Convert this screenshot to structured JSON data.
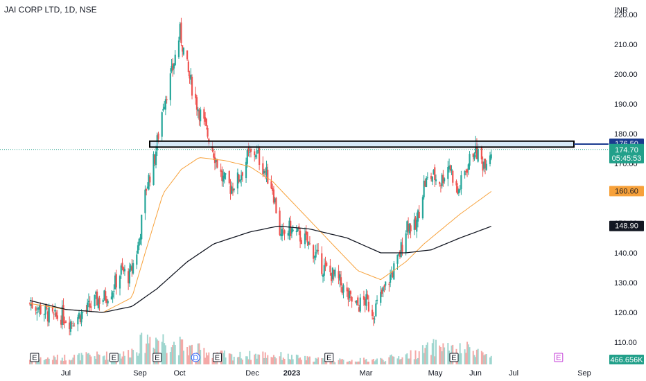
{
  "chart_data": {
    "type": "candlestick",
    "title": "JAI CORP LTD, 1D, NSE",
    "currency": "INR",
    "ylim": [
      105,
      222
    ],
    "y_ticks": [
      110,
      120,
      130,
      140,
      150,
      160,
      170,
      180,
      190,
      200,
      210,
      220
    ],
    "y_tick_labels": [
      "110.00",
      "120.00",
      "130.00",
      "140.00",
      "150.00",
      "160.00",
      "170.00",
      "180.00",
      "190.00",
      "200.00",
      "210.00",
      "220.00"
    ],
    "x_labels": [
      "Jul",
      "Sep",
      "Oct",
      "Dec",
      "2023",
      "Mar",
      "May",
      "Jun",
      "Jul",
      "Sep"
    ],
    "grid": false,
    "price_tags": {
      "resistance": "176.50",
      "last_price": "174.70",
      "countdown": "05:45:53",
      "ma_fast": "160.60",
      "ma_slow": "148.90",
      "volume": "466.656K"
    },
    "resistance_zone": [
      175.5,
      177.5
    ],
    "last_price_value": 174.7,
    "series": [
      {
        "kind": "close_path",
        "points": [
          [
            "2022-06-01",
            123
          ],
          [
            "2022-06-07",
            122
          ],
          [
            "2022-06-14",
            120
          ],
          [
            "2022-06-21",
            118
          ],
          [
            "2022-06-28",
            119
          ],
          [
            "2022-07-05",
            117
          ],
          [
            "2022-07-12",
            119
          ],
          [
            "2022-07-19",
            121
          ],
          [
            "2022-07-26",
            124
          ],
          [
            "2022-08-02",
            125
          ],
          [
            "2022-08-09",
            128
          ],
          [
            "2022-08-16",
            134
          ],
          [
            "2022-08-23",
            132
          ],
          [
            "2022-08-30",
            142
          ],
          [
            "2022-09-06",
            162
          ],
          [
            "2022-09-13",
            172
          ],
          [
            "2022-09-20",
            190
          ],
          [
            "2022-09-27",
            200
          ],
          [
            "2022-10-04",
            214
          ],
          [
            "2022-10-11",
            200
          ],
          [
            "2022-10-18",
            190
          ],
          [
            "2022-10-25",
            182
          ],
          [
            "2022-11-01",
            174
          ],
          [
            "2022-11-08",
            165
          ],
          [
            "2022-11-15",
            162
          ],
          [
            "2022-11-22",
            165
          ],
          [
            "2022-11-29",
            172
          ],
          [
            "2022-12-06",
            174
          ],
          [
            "2022-12-13",
            168
          ],
          [
            "2022-12-20",
            162
          ],
          [
            "2022-12-27",
            145
          ],
          [
            "2023-01-03",
            148
          ],
          [
            "2023-01-10",
            146
          ],
          [
            "2023-01-17",
            144
          ],
          [
            "2023-01-24",
            140
          ],
          [
            "2023-01-31",
            135
          ],
          [
            "2023-02-07",
            133
          ],
          [
            "2023-02-14",
            130
          ],
          [
            "2023-02-21",
            125
          ],
          [
            "2023-02-28",
            122
          ],
          [
            "2023-03-07",
            124
          ],
          [
            "2023-03-14",
            120
          ],
          [
            "2023-03-21",
            126
          ],
          [
            "2023-03-28",
            132
          ],
          [
            "2023-04-04",
            138
          ],
          [
            "2023-04-11",
            150
          ],
          [
            "2023-04-18",
            148
          ],
          [
            "2023-04-25",
            163
          ],
          [
            "2023-05-02",
            166
          ],
          [
            "2023-05-09",
            164
          ],
          [
            "2023-05-16",
            170
          ],
          [
            "2023-05-23",
            160
          ],
          [
            "2023-05-30",
            168
          ],
          [
            "2023-06-06",
            175
          ],
          [
            "2023-06-13",
            170
          ],
          [
            "2023-06-20",
            174.7
          ]
        ]
      },
      {
        "kind": "ma_fast",
        "color": "#f7a13a",
        "points": [
          [
            "2022-06-01",
            123
          ],
          [
            "2022-07-01",
            121
          ],
          [
            "2022-08-01",
            120
          ],
          [
            "2022-08-25",
            125
          ],
          [
            "2022-09-05",
            140
          ],
          [
            "2022-09-20",
            160
          ],
          [
            "2022-10-05",
            168
          ],
          [
            "2022-10-20",
            172
          ],
          [
            "2022-11-10",
            171
          ],
          [
            "2022-12-01",
            169
          ],
          [
            "2022-12-20",
            164
          ],
          [
            "2023-01-15",
            153
          ],
          [
            "2023-02-10",
            142
          ],
          [
            "2023-03-01",
            134
          ],
          [
            "2023-03-20",
            131
          ],
          [
            "2023-04-10",
            137
          ],
          [
            "2023-04-25",
            143
          ],
          [
            "2023-05-10",
            148
          ],
          [
            "2023-05-25",
            153
          ],
          [
            "2023-06-20",
            160.6
          ]
        ]
      },
      {
        "kind": "ma_slow",
        "color": "#131722",
        "points": [
          [
            "2022-06-01",
            124
          ],
          [
            "2022-07-01",
            121
          ],
          [
            "2022-08-01",
            120
          ],
          [
            "2022-08-25",
            122
          ],
          [
            "2022-09-15",
            128
          ],
          [
            "2022-10-10",
            137
          ],
          [
            "2022-11-01",
            143
          ],
          [
            "2022-12-01",
            147
          ],
          [
            "2022-12-25",
            149
          ],
          [
            "2023-01-20",
            148
          ],
          [
            "2023-02-20",
            145
          ],
          [
            "2023-03-20",
            140
          ],
          [
            "2023-04-10",
            140
          ],
          [
            "2023-05-01",
            141
          ],
          [
            "2023-05-25",
            145
          ],
          [
            "2023-06-20",
            148.9
          ]
        ]
      },
      {
        "kind": "volume_profile",
        "points": [
          [
            "2022-06-01",
            0.15
          ],
          [
            "2022-07-15",
            0.25
          ],
          [
            "2022-08-20",
            0.3
          ],
          [
            "2022-09-10",
            0.85
          ],
          [
            "2022-09-25",
            0.7
          ],
          [
            "2022-10-10",
            0.5
          ],
          [
            "2022-11-15",
            0.25
          ],
          [
            "2022-12-15",
            0.3
          ],
          [
            "2023-01-15",
            0.18
          ],
          [
            "2023-02-15",
            0.12
          ],
          [
            "2023-03-20",
            0.15
          ],
          [
            "2023-04-15",
            0.3
          ],
          [
            "2023-05-10",
            0.6
          ],
          [
            "2023-05-20",
            0.4
          ],
          [
            "2023-06-05",
            0.5
          ],
          [
            "2023-06-20",
            0.2
          ]
        ]
      }
    ],
    "event_markers": [
      {
        "date": "2022-06-05",
        "label": "E"
      },
      {
        "date": "2022-08-10",
        "label": "E"
      },
      {
        "date": "2022-09-15",
        "label": "E"
      },
      {
        "date": "2022-10-17",
        "label": "D"
      },
      {
        "date": "2022-11-04",
        "label": "E"
      },
      {
        "date": "2023-02-05",
        "label": "E"
      },
      {
        "date": "2023-05-20",
        "label": "E"
      },
      {
        "date": "2023-08-15",
        "label": "E"
      }
    ]
  },
  "colors": {
    "up": "#26a69a",
    "down": "#ef5350",
    "ma_fast": "#f7a13a",
    "ma_slow": "#131722",
    "resistance_tag": "#1a3a8f",
    "last_price_tag": "#22a08a",
    "ma_fast_tag": "#f7a13a",
    "ma_slow_tag": "#131722",
    "event_e": "#131722",
    "event_d": "#2962ff",
    "event_future": "#c43dd8"
  }
}
